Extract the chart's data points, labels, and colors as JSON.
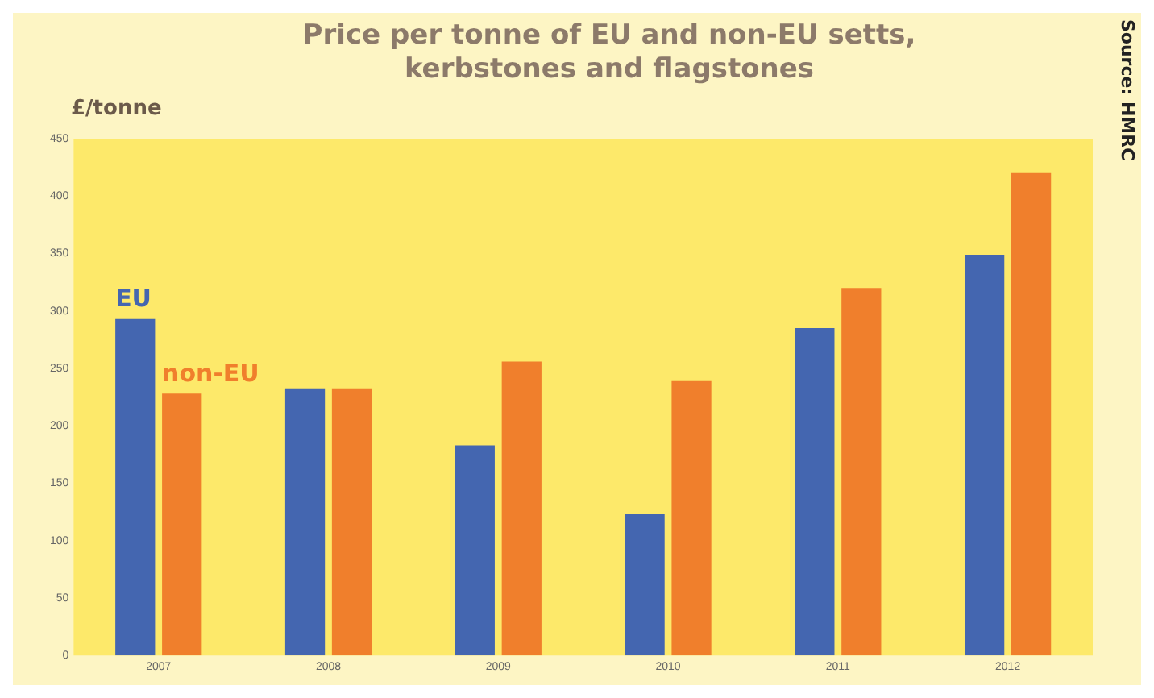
{
  "chart_data": {
    "type": "bar",
    "title": "Price per tonne of EU and non-EU setts, kerbstones and flagstones",
    "ylabel": "£/tonne",
    "annotations": [
      "Source: HMRC"
    ],
    "categories": [
      "2007",
      "2008",
      "2009",
      "2010",
      "2011",
      "2012"
    ],
    "series": [
      {
        "name": "EU",
        "color": "#4466b0",
        "values": [
          293,
          232,
          183,
          123,
          285,
          349
        ]
      },
      {
        "name": "non-EU",
        "color": "#f07f2c",
        "values": [
          228,
          232,
          256,
          239,
          320,
          420
        ]
      }
    ],
    "ylim": [
      0,
      450
    ],
    "yticks": [
      0,
      50,
      100,
      150,
      200,
      250,
      300,
      350,
      400,
      450
    ],
    "grid": false,
    "legend": false
  }
}
